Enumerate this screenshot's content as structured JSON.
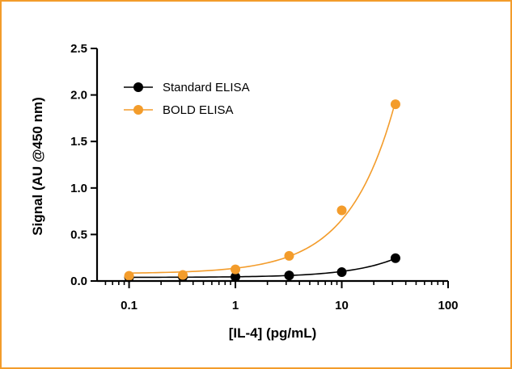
{
  "chart_data": {
    "type": "scatter",
    "title": "",
    "xlabel": "[IL-4] (pg/mL)",
    "ylabel": "Signal (AU @450 nm)",
    "xscale": "log",
    "xlim": [
      0.05,
      100
    ],
    "ylim": [
      0,
      2.5
    ],
    "xticks": [
      0.1,
      1,
      10,
      100
    ],
    "xtick_labels": [
      "0.1",
      "1",
      "10",
      "100"
    ],
    "yticks": [
      0.0,
      0.5,
      1.0,
      1.5,
      2.0,
      2.5
    ],
    "ytick_labels": [
      "0.0",
      "0.5",
      "1.0",
      "1.5",
      "2.0",
      "2.5"
    ],
    "grid": false,
    "legend_position": "top-left",
    "series": [
      {
        "name": "Standard ELISA",
        "color": "#000000",
        "x": [
          0.1,
          0.32,
          1,
          3.2,
          10,
          32
        ],
        "y": [
          0.04,
          0.045,
          0.045,
          0.06,
          0.095,
          0.245
        ]
      },
      {
        "name": "BOLD ELISA",
        "color": "#f39c2b",
        "x": [
          0.1,
          0.32,
          1,
          3.2,
          10,
          32
        ],
        "y": [
          0.055,
          0.065,
          0.125,
          0.27,
          0.76,
          1.9
        ]
      }
    ]
  }
}
